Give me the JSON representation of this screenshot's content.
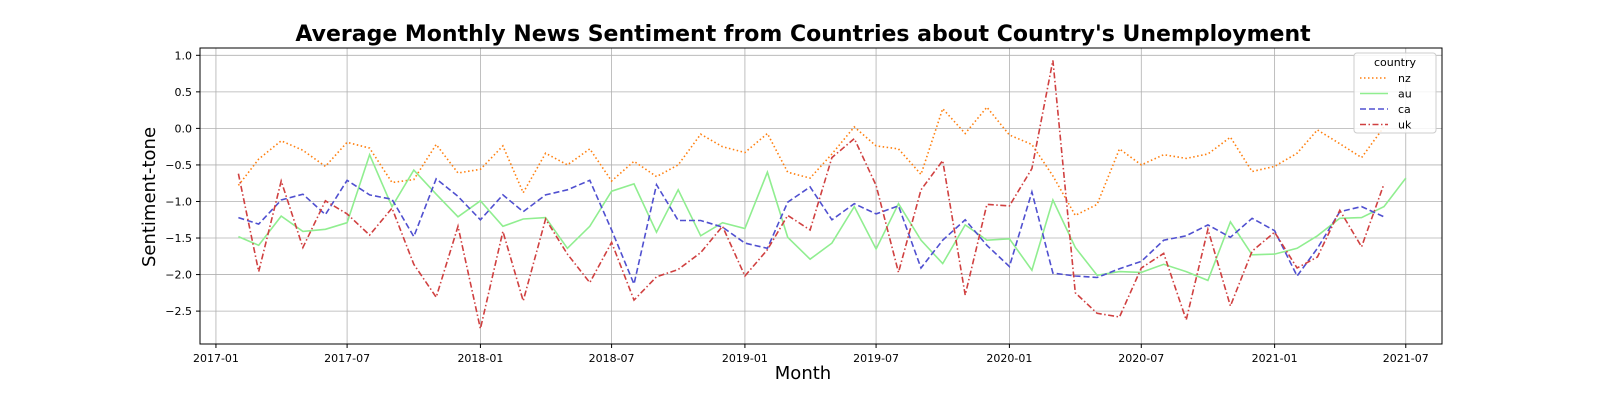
{
  "chart_data": {
    "type": "line",
    "title": "Average Monthly News Sentiment from Countries about Country's Unemployment",
    "xlabel": "Month",
    "ylabel": "Sentiment-tone",
    "x_start": "2017-02",
    "xlim": [
      "2016-12-10",
      "2021-08-20"
    ],
    "ylim": [
      -2.95,
      1.1
    ],
    "x_ticks": [
      "2017-01",
      "2017-07",
      "2018-01",
      "2018-07",
      "2019-01",
      "2019-07",
      "2020-01",
      "2020-07",
      "2021-01",
      "2021-07"
    ],
    "y_ticks": [
      1.0,
      0.5,
      0.0,
      -0.5,
      -1.0,
      -1.5,
      -2.0,
      -2.5
    ],
    "y_tick_labels": [
      "1.0",
      "0.5",
      "0.0",
      "−0.5",
      "−1.0",
      "−1.5",
      "−2.0",
      "−2.5"
    ],
    "grid": true,
    "legend": {
      "title": "country",
      "position": "top-right"
    },
    "series": [
      {
        "name": "nz",
        "color": "#ff7f0e",
        "dash": "dotted",
        "values": [
          -0.78,
          -0.42,
          -0.17,
          -0.3,
          -0.52,
          -0.19,
          -0.27,
          -0.74,
          -0.7,
          -0.22,
          -0.61,
          -0.56,
          -0.24,
          -0.88,
          -0.34,
          -0.5,
          -0.28,
          -0.72,
          -0.45,
          -0.66,
          -0.5,
          -0.08,
          -0.25,
          -0.33,
          -0.07,
          -0.6,
          -0.68,
          -0.35,
          0.02,
          -0.24,
          -0.28,
          -0.63,
          0.27,
          -0.07,
          0.29,
          -0.09,
          -0.22,
          -0.65,
          -1.19,
          -1.04,
          -0.28,
          -0.5,
          -0.36,
          -0.41,
          -0.35,
          -0.12,
          -0.59,
          -0.52,
          -0.34,
          -0.02,
          -0.21,
          -0.4,
          0.02
        ]
      },
      {
        "name": "au",
        "color": "#90ee90",
        "dash": "solid",
        "values": [
          -1.48,
          -1.6,
          -1.2,
          -1.41,
          -1.38,
          -1.29,
          -0.36,
          -1.07,
          -0.57,
          -0.9,
          -1.21,
          -0.99,
          -1.34,
          -1.24,
          -1.22,
          -1.64,
          -1.34,
          -0.86,
          -0.76,
          -1.42,
          -0.84,
          -1.47,
          -1.29,
          -1.37,
          -0.6,
          -1.49,
          -1.79,
          -1.57,
          -1.07,
          -1.65,
          -1.03,
          -1.53,
          -1.85,
          -1.32,
          -1.53,
          -1.51,
          -1.94,
          -0.98,
          -1.63,
          -2.01,
          -1.96,
          -1.97,
          -1.86,
          -1.96,
          -2.08,
          -1.28,
          -1.73,
          -1.72,
          -1.64,
          -1.47,
          -1.23,
          -1.22,
          -1.07,
          -0.68
        ]
      },
      {
        "name": "ca",
        "color": "#5050d0",
        "dash": "dashed",
        "values": [
          -1.22,
          -1.31,
          -0.98,
          -0.9,
          -1.18,
          -0.71,
          -0.91,
          -0.97,
          -1.48,
          -0.69,
          -0.93,
          -1.25,
          -0.91,
          -1.14,
          -0.91,
          -0.84,
          -0.71,
          -1.39,
          -2.13,
          -0.77,
          -1.26,
          -1.26,
          -1.35,
          -1.57,
          -1.64,
          -1.01,
          -0.8,
          -1.25,
          -1.03,
          -1.17,
          -1.06,
          -1.91,
          -1.53,
          -1.25,
          -1.6,
          -1.89,
          -0.87,
          -1.98,
          -2.02,
          -2.04,
          -1.92,
          -1.82,
          -1.53,
          -1.47,
          -1.32,
          -1.49,
          -1.23,
          -1.4,
          -2.02,
          -1.64,
          -1.14,
          -1.07,
          -1.21
        ]
      },
      {
        "name": "uk",
        "color": "#d04040",
        "dash": "dashdot",
        "values": [
          -0.62,
          -1.96,
          -0.72,
          -1.63,
          -0.99,
          -1.17,
          -1.46,
          -1.09,
          -1.86,
          -2.31,
          -1.34,
          -2.74,
          -1.41,
          -2.36,
          -1.24,
          -1.72,
          -2.11,
          -1.56,
          -2.35,
          -2.03,
          -1.93,
          -1.7,
          -1.34,
          -2.02,
          -1.66,
          -1.19,
          -1.39,
          -0.4,
          -0.14,
          -0.78,
          -1.97,
          -0.84,
          -0.44,
          -2.28,
          -1.04,
          -1.06,
          -0.55,
          0.93,
          -2.25,
          -2.53,
          -2.58,
          -1.91,
          -1.71,
          -2.62,
          -1.38,
          -2.43,
          -1.68,
          -1.42,
          -1.91,
          -1.76,
          -1.12,
          -1.62,
          -0.76
        ]
      }
    ]
  }
}
